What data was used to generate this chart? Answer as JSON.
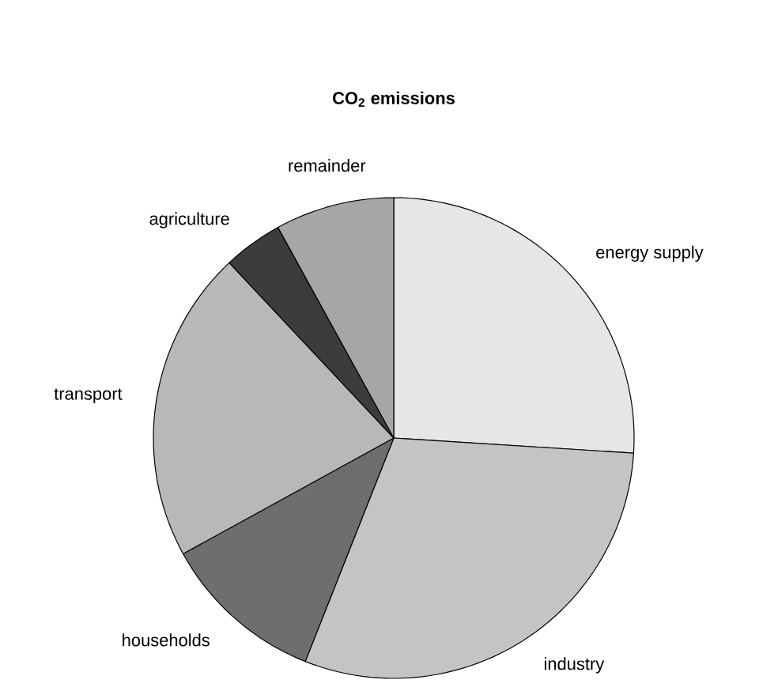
{
  "chart_data": {
    "type": "pie",
    "title": "CO$_{2}$ emissions",
    "categories": [
      "energy supply",
      "industry",
      "households",
      "transport",
      "agriculture",
      "remainder"
    ],
    "values": [
      26,
      30,
      11,
      21,
      4,
      8
    ],
    "colors": [
      "#e6e6e6",
      "#c4c4c4",
      "#6e6e6e",
      "#b8b8b8",
      "#3c3c3c",
      "#a6a6a6"
    ]
  }
}
